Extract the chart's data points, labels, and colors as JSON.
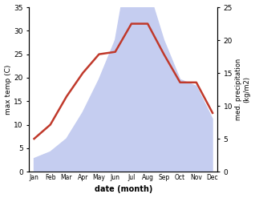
{
  "months": [
    "Jan",
    "Feb",
    "Mar",
    "Apr",
    "May",
    "Jun",
    "Jul",
    "Aug",
    "Sep",
    "Oct",
    "Nov",
    "Dec"
  ],
  "temp": [
    7,
    10,
    16,
    21,
    25,
    25.5,
    31.5,
    31.5,
    25,
    19,
    19,
    12.5
  ],
  "precip_kg": [
    2,
    3,
    5,
    9,
    14,
    20,
    34,
    28,
    20,
    14,
    13,
    8
  ],
  "temp_color": "#c0392b",
  "precip_fill_color": "#c5cdf0",
  "ylabel_left": "max temp (C)",
  "ylabel_right": "med. precipitation\n(kg/m2)",
  "xlabel": "date (month)",
  "ylim_left": [
    0,
    35
  ],
  "ylim_right": [
    0,
    25
  ],
  "yticks_left": [
    0,
    5,
    10,
    15,
    20,
    25,
    30,
    35
  ],
  "yticks_right": [
    0,
    5,
    10,
    15,
    20,
    25
  ],
  "bg_color": "#ffffff",
  "line_width": 1.8
}
